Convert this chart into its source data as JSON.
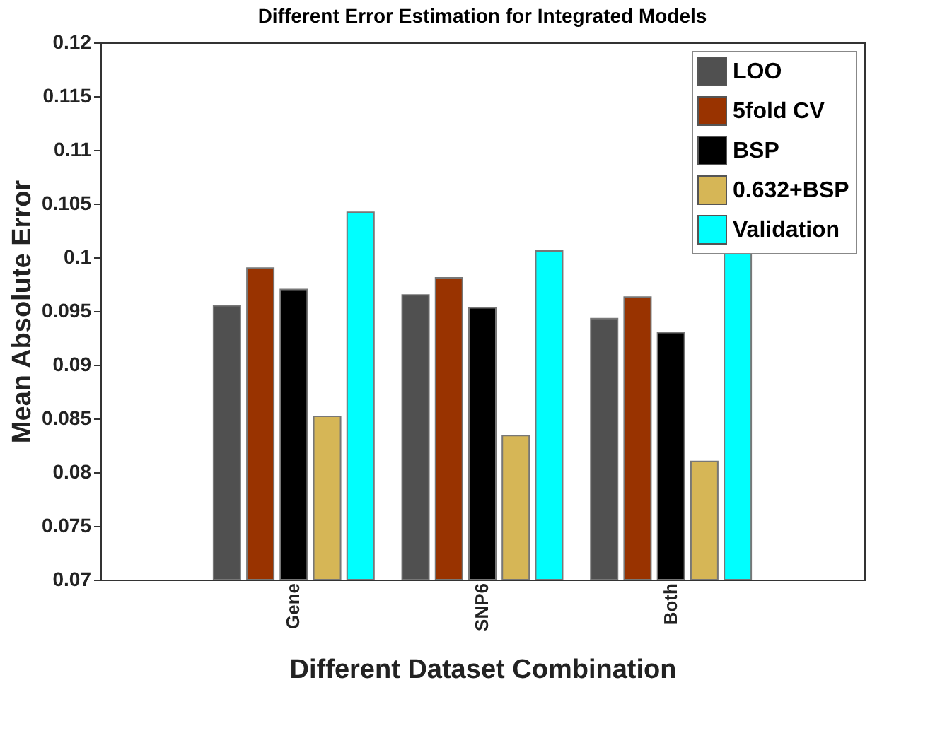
{
  "chart_data": {
    "type": "bar",
    "title": "Different Error Estimation for Integrated Models",
    "xlabel": "Different Dataset Combination",
    "ylabel": "Mean Absolute Error",
    "categories": [
      "Gene",
      "SNP6",
      "Both"
    ],
    "series": [
      {
        "name": "LOO",
        "color": "#505050",
        "values": [
          0.0955,
          0.0965,
          0.0943
        ]
      },
      {
        "name": "5fold CV",
        "color": "#993300",
        "values": [
          0.099,
          0.0981,
          0.0963
        ]
      },
      {
        "name": "BSP",
        "color": "#000000",
        "values": [
          0.097,
          0.0953,
          0.093
        ]
      },
      {
        "name": "0.632+BSP",
        "color": "#d6b656",
        "values": [
          0.0852,
          0.0834,
          0.081
        ]
      },
      {
        "name": "Validation",
        "color": "#00ffff",
        "values": [
          0.1042,
          0.1006,
          0.1006
        ]
      }
    ],
    "ylim": [
      0.07,
      0.12
    ],
    "yticks": [
      0.07,
      0.075,
      0.08,
      0.085,
      0.09,
      0.095,
      0.1,
      0.105,
      0.11,
      0.115,
      0.12
    ],
    "grid": false,
    "legend": "top right"
  }
}
